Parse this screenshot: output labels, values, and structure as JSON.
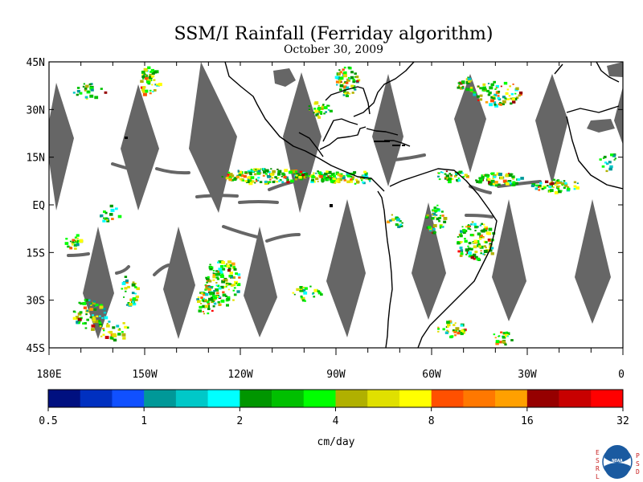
{
  "title": "SSM/I Rainfall (Ferriday algorithm)",
  "date": "October 30, 2009",
  "map": {
    "lon_min": -180,
    "lon_max": 0,
    "lat_min": -45,
    "lat_max": 45,
    "lat_labels": [
      {
        "lat": 45,
        "label": "45N"
      },
      {
        "lat": 30,
        "label": "30N"
      },
      {
        "lat": 15,
        "label": "15N"
      },
      {
        "lat": 0,
        "label": "EQ"
      },
      {
        "lat": -15,
        "label": "15S"
      },
      {
        "lat": -30,
        "label": "30S"
      },
      {
        "lat": -45,
        "label": "45S"
      }
    ],
    "lon_labels": [
      {
        "lon": -180,
        "label": "180E"
      },
      {
        "lon": -150,
        "label": "150W"
      },
      {
        "lon": -120,
        "label": "120W"
      },
      {
        "lon": -90,
        "label": "90W"
      },
      {
        "lon": -60,
        "label": "60W"
      },
      {
        "lon": -30,
        "label": "30W"
      },
      {
        "lon": 0,
        "label": "0"
      }
    ],
    "missing_color": "#666666",
    "coast_color": "#000000"
  },
  "colorbar": {
    "unit_label": "cm/day",
    "tick_labels": [
      "0.5",
      "1",
      "2",
      "4",
      "8",
      "16",
      "32"
    ],
    "colors": [
      "#001080",
      "#0030c0",
      "#1050ff",
      "#009898",
      "#00c8c8",
      "#00ffff",
      "#009600",
      "#00c000",
      "#00ff00",
      "#b0b000",
      "#e0e000",
      "#ffff00",
      "#ff5000",
      "#ff7800",
      "#ffa000",
      "#960000",
      "#c80000",
      "#ff0000"
    ]
  },
  "logo": {
    "name": "NOAA",
    "left_letters": [
      "E",
      "S",
      "R",
      "L"
    ],
    "right_letters": [
      "P",
      "S",
      "D"
    ],
    "color": "#c81e1e"
  }
}
